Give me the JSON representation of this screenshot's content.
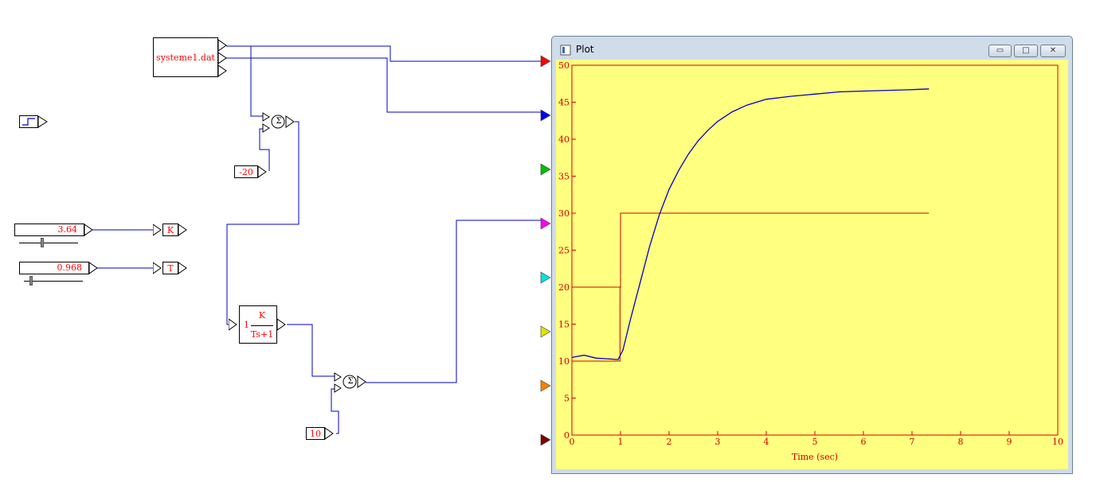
{
  "diagram": {
    "file_block": {
      "label": "systeme1.dat"
    },
    "const_minus20": {
      "label": "-20"
    },
    "const_10": {
      "label": "10"
    },
    "slider_k": {
      "value": "3.64",
      "gain_label": "K"
    },
    "slider_t": {
      "value": "0.968",
      "gain_label": "T"
    },
    "tf_block": {
      "prefix": "1",
      "numerator": "K",
      "denominator": "Ts+1"
    },
    "sum_symbol": "Σ",
    "scope_port_colors": [
      "#ff0000",
      "#0000ff",
      "#00c000",
      "#ff00ff",
      "#00e0e0",
      "#e0e000",
      "#ff8000",
      "#800000"
    ]
  },
  "plot_window": {
    "title": "Plot",
    "buttons": {
      "minimize": "▭",
      "maximize": "□",
      "close": "✕"
    }
  },
  "chart_data": {
    "type": "line",
    "xlabel": "Time (sec)",
    "ylabel": "",
    "xlim": [
      0,
      10
    ],
    "ylim": [
      0,
      50
    ],
    "x_ticks": [
      "0",
      "1",
      "2",
      "3",
      "4",
      "5",
      "6",
      "7",
      "8",
      "9",
      "10"
    ],
    "y_ticks": [
      "0",
      "5",
      "10",
      "15",
      "20",
      "25",
      "30",
      "35",
      "40",
      "45",
      "50"
    ],
    "series": [
      {
        "color": "#d00000",
        "points": [
          [
            0,
            10
          ],
          [
            0.99,
            10
          ],
          [
            0.99,
            20
          ],
          [
            1.0,
            20
          ],
          [
            1.0,
            30
          ],
          [
            7.35,
            30
          ]
        ]
      },
      {
        "color": "#d00000",
        "points": [
          [
            0,
            20
          ],
          [
            1.0,
            20
          ]
        ]
      },
      {
        "color": "#0000cc",
        "points": [
          [
            0,
            10.5
          ],
          [
            0.25,
            10.8
          ],
          [
            0.5,
            10.4
          ],
          [
            0.75,
            10.3
          ],
          [
            0.95,
            10.2
          ],
          [
            1.05,
            11.5
          ],
          [
            1.2,
            15.5
          ],
          [
            1.4,
            20.5
          ],
          [
            1.6,
            25.5
          ],
          [
            1.8,
            29.8
          ],
          [
            2.0,
            33.2
          ],
          [
            2.2,
            35.8
          ],
          [
            2.4,
            38.0
          ],
          [
            2.6,
            39.8
          ],
          [
            2.8,
            41.2
          ],
          [
            3.0,
            42.4
          ],
          [
            3.3,
            43.7
          ],
          [
            3.6,
            44.6
          ],
          [
            4.0,
            45.4
          ],
          [
            4.5,
            45.8
          ],
          [
            5.0,
            46.1
          ],
          [
            5.5,
            46.4
          ],
          [
            6.0,
            46.5
          ],
          [
            6.5,
            46.6
          ],
          [
            7.0,
            46.7
          ],
          [
            7.35,
            46.8
          ]
        ]
      }
    ]
  }
}
